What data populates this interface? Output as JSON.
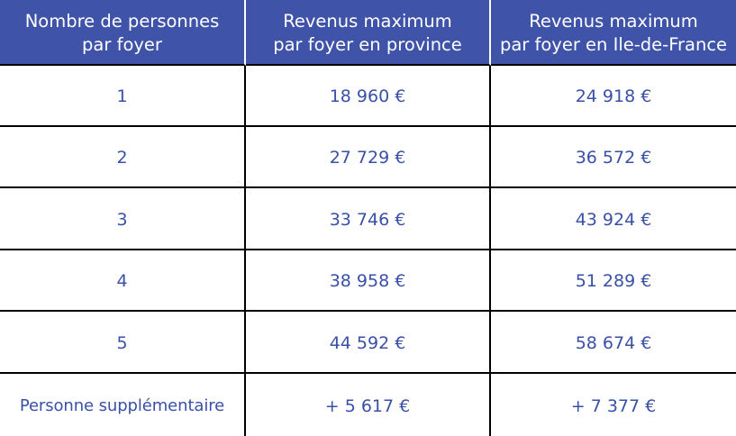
{
  "table": {
    "headers": [
      "Nombre de personnes par foyer",
      "Revenus maximum par foyer en province",
      "Revenus maximum par foyer en Ile-de-France"
    ],
    "headers_lines": [
      [
        "Nombre de personnes",
        "par foyer"
      ],
      [
        "Revenus maximum",
        "par foyer en province"
      ],
      [
        "Revenus maximum",
        "par foyer en Ile-de-France"
      ]
    ],
    "rows": [
      [
        "1",
        "18 960 €",
        "24 918 €"
      ],
      [
        "2",
        "27 729 €",
        "36 572 €"
      ],
      [
        "3",
        "33 746 €",
        "43 924 €"
      ],
      [
        "4",
        "38 958 €",
        "51 289 €"
      ],
      [
        "5",
        "44 592 €",
        "58 674 €"
      ],
      [
        "Personne supplémentaire",
        "+ 5 617 €",
        "+ 7 377 €"
      ]
    ]
  },
  "colors": {
    "header_bg": "#3f53a9",
    "header_text": "#ffffff",
    "body_text": "#3a4fa8",
    "grid_lines": "#000000"
  }
}
